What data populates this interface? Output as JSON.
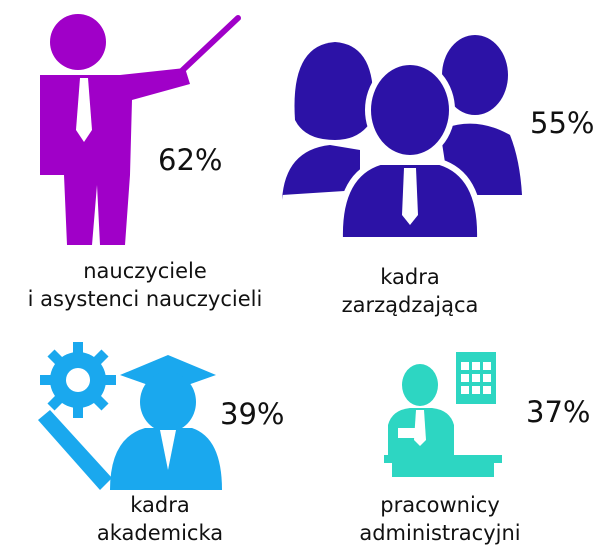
{
  "items": [
    {
      "label": [
        "nauczyciele",
        "i asystenci nauczycieli"
      ],
      "percent": "62%"
    },
    {
      "label": [
        "kadra",
        "zarządzająca"
      ],
      "percent": "55%"
    },
    {
      "label": [
        "kadra",
        "akademicka"
      ],
      "percent": "39%"
    },
    {
      "label": [
        "pracownicy",
        "administracyjni"
      ],
      "percent": "37%"
    }
  ]
}
